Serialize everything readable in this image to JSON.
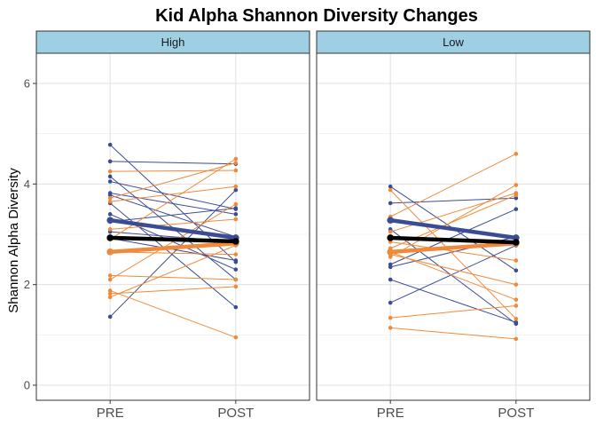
{
  "chart_data": {
    "type": "line",
    "title": "Kid Alpha Shannon Diversity Changes",
    "ylabel": "Shannon Alpha Diversity",
    "xlabel": "",
    "categories": [
      "PRE",
      "POST"
    ],
    "ylim": [
      -0.3,
      6.6
    ],
    "yticks": [
      0,
      2,
      4,
      6
    ],
    "grid": true,
    "colors": {
      "blue": "#3a4d94",
      "orange": "#f08a3a",
      "mean": "#000000",
      "strip": "#9ecfe3"
    },
    "panels": [
      {
        "label": "High",
        "thin_series": [
          {
            "color": "blue",
            "values": [
              4.78,
              2.45
            ]
          },
          {
            "color": "blue",
            "values": [
              4.45,
              4.4
            ]
          },
          {
            "color": "blue",
            "values": [
              4.15,
              2.1
            ]
          },
          {
            "color": "blue",
            "values": [
              4.05,
              3.5
            ]
          },
          {
            "color": "blue",
            "values": [
              3.82,
              3.4
            ]
          },
          {
            "color": "blue",
            "values": [
              3.78,
              2.95
            ]
          },
          {
            "color": "blue",
            "values": [
              3.62,
              1.55
            ]
          },
          {
            "color": "blue",
            "values": [
              3.4,
              2.3
            ]
          },
          {
            "color": "blue",
            "values": [
              3.25,
              3.52
            ]
          },
          {
            "color": "blue",
            "values": [
              3.05,
              2.85
            ]
          },
          {
            "color": "blue",
            "values": [
              2.92,
              2.48
            ]
          },
          {
            "color": "blue",
            "values": [
              1.36,
              3.88
            ]
          },
          {
            "color": "orange",
            "values": [
              4.25,
              4.27
            ]
          },
          {
            "color": "orange",
            "values": [
              3.72,
              4.42
            ]
          },
          {
            "color": "orange",
            "values": [
              3.65,
              3.95
            ]
          },
          {
            "color": "orange",
            "values": [
              3.1,
              3.3
            ]
          },
          {
            "color": "orange",
            "values": [
              2.9,
              4.5
            ]
          },
          {
            "color": "orange",
            "values": [
              2.65,
              2.6
            ]
          },
          {
            "color": "orange",
            "values": [
              2.18,
              2.1
            ]
          },
          {
            "color": "orange",
            "values": [
              2.1,
              3.6
            ]
          },
          {
            "color": "orange",
            "values": [
              1.88,
              0.95
            ]
          },
          {
            "color": "orange",
            "values": [
              1.82,
              1.96
            ]
          },
          {
            "color": "orange",
            "values": [
              1.75,
              2.78
            ]
          }
        ],
        "mean_series": [
          {
            "color": "blue",
            "values": [
              3.28,
              2.93
            ]
          },
          {
            "color": "orange",
            "values": [
              2.65,
              2.82
            ]
          },
          {
            "color": "mean",
            "values": [
              2.93,
              2.86
            ]
          }
        ]
      },
      {
        "label": "Low",
        "thin_series": [
          {
            "color": "blue",
            "values": [
              3.95,
              2.28
            ]
          },
          {
            "color": "blue",
            "values": [
              3.62,
              3.72
            ]
          },
          {
            "color": "blue",
            "values": [
              3.1,
              1.22
            ]
          },
          {
            "color": "blue",
            "values": [
              2.4,
              3.5
            ]
          },
          {
            "color": "blue",
            "values": [
              2.35,
              2.95
            ]
          },
          {
            "color": "blue",
            "values": [
              2.1,
              1.25
            ]
          },
          {
            "color": "blue",
            "values": [
              1.64,
              2.78
            ]
          },
          {
            "color": "orange",
            "values": [
              3.88,
              1.32
            ]
          },
          {
            "color": "orange",
            "values": [
              3.35,
              4.6
            ]
          },
          {
            "color": "orange",
            "values": [
              3.05,
              3.82
            ]
          },
          {
            "color": "orange",
            "values": [
              2.85,
              2.48
            ]
          },
          {
            "color": "orange",
            "values": [
              2.72,
              3.78
            ]
          },
          {
            "color": "orange",
            "values": [
              2.65,
              1.7
            ]
          },
          {
            "color": "orange",
            "values": [
              2.6,
              2.0
            ]
          },
          {
            "color": "orange",
            "values": [
              2.55,
              3.98
            ]
          },
          {
            "color": "orange",
            "values": [
              1.34,
              1.58
            ]
          },
          {
            "color": "orange",
            "values": [
              1.14,
              0.92
            ]
          }
        ],
        "mean_series": [
          {
            "color": "blue",
            "values": [
              3.28,
              2.93
            ]
          },
          {
            "color": "orange",
            "values": [
              2.65,
              2.82
            ]
          },
          {
            "color": "mean",
            "values": [
              2.93,
              2.84
            ]
          }
        ]
      }
    ]
  }
}
